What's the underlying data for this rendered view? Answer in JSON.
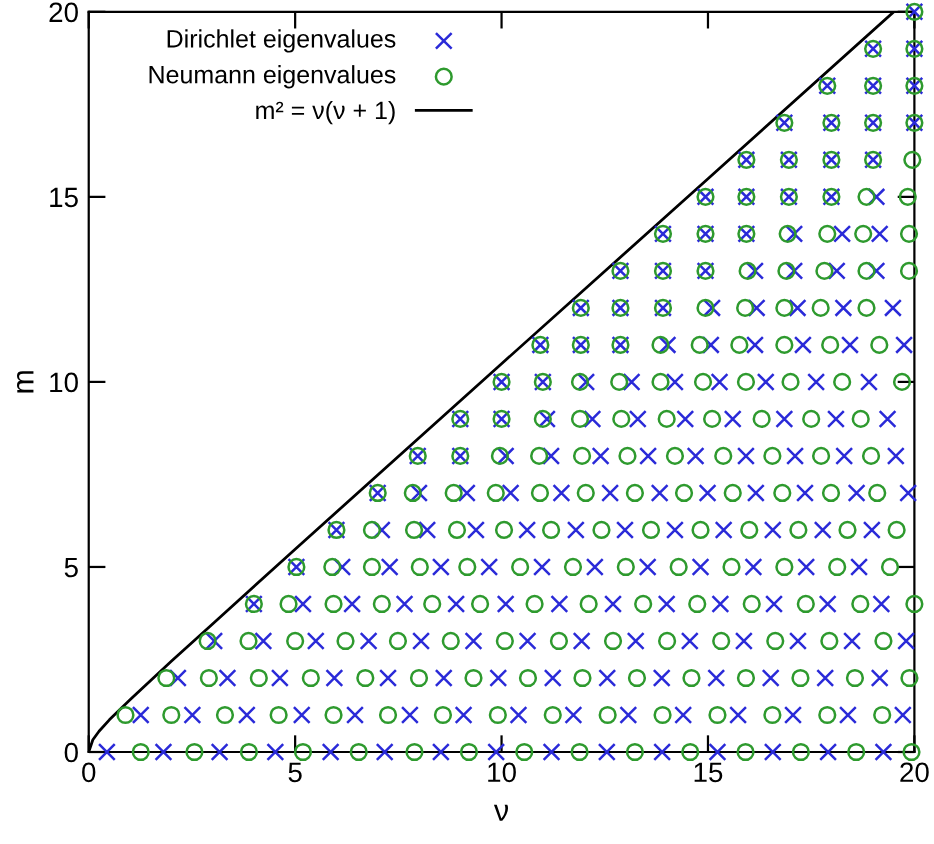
{
  "chart_data": {
    "type": "scatter",
    "xlabel": "ν",
    "ylabel": "m",
    "xlim": [
      0,
      20
    ],
    "ylim": [
      0,
      20
    ],
    "xticks": [
      0,
      5,
      10,
      15,
      20
    ],
    "yticks": [
      0,
      5,
      10,
      15,
      20
    ],
    "legend": "top left",
    "series": [
      {
        "name": "Dirichlet eigenvalues",
        "marker": "cross",
        "color": "#2a2ad8",
        "x": [
          0.44,
          1.81,
          3.17,
          4.52,
          5.86,
          7.17,
          8.53,
          9.87,
          11.21,
          12.55,
          13.89,
          15.23,
          16.57,
          17.91,
          19.25,
          1.26,
          2.51,
          3.83,
          5.16,
          6.45,
          7.78,
          9.08,
          10.41,
          11.74,
          13.07,
          14.4,
          15.73,
          17.06,
          18.39,
          19.72,
          2.16,
          3.36,
          4.63,
          5.95,
          7.25,
          8.6,
          9.92,
          11.24,
          12.56,
          13.88,
          15.2,
          16.52,
          17.84,
          19.16,
          3.04,
          4.23,
          5.5,
          6.78,
          8.05,
          9.32,
          10.63,
          11.94,
          13.25,
          14.56,
          15.87,
          17.18,
          18.49,
          19.8,
          4.0,
          5.19,
          6.38,
          7.65,
          8.9,
          10.1,
          11.4,
          12.7,
          14.0,
          15.3,
          16.6,
          17.9,
          19.2,
          5.03,
          6.14,
          7.29,
          8.53,
          9.7,
          10.98,
          12.26,
          13.54,
          14.82,
          16.1,
          17.38,
          18.66,
          6.0,
          7.1,
          8.2,
          9.38,
          10.62,
          11.8,
          12.99,
          14.2,
          15.38,
          16.57,
          17.78,
          18.97,
          7.0,
          8.0,
          9.16,
          10.22,
          11.45,
          12.63,
          13.83,
          14.99,
          16.16,
          17.35,
          18.6,
          19.85,
          7.97,
          9.0,
          10.1,
          11.2,
          12.4,
          13.55,
          14.7,
          15.92,
          17.11,
          18.3,
          19.55,
          9.0,
          10.0,
          11.1,
          12.2,
          13.3,
          14.45,
          15.6,
          16.85,
          18.1,
          19.35,
          10.0,
          11.0,
          12.05,
          13.15,
          14.2,
          15.28,
          16.4,
          17.62,
          18.9,
          10.94,
          11.92,
          12.88,
          14.02,
          15.07,
          16.14,
          17.3,
          18.44,
          19.75,
          11.92,
          12.88,
          13.91,
          15.1,
          16.18,
          17.17,
          18.28,
          19.48,
          12.88,
          13.91,
          14.94,
          16.14,
          17.09,
          18.12,
          19.08,
          13.91,
          14.94,
          15.93,
          17.09,
          18.25,
          19.16,
          14.94,
          15.93,
          16.96,
          17.99,
          19.08,
          15.93,
          16.96,
          17.99,
          19.0,
          16.85,
          17.99,
          19.0,
          20.0,
          17.89,
          19.0,
          20.0,
          19.0,
          20.0,
          20.0
        ],
        "values": [
          0,
          0,
          0,
          0,
          0,
          0,
          0,
          0,
          0,
          0,
          0,
          0,
          0,
          0,
          0,
          1,
          1,
          1,
          1,
          1,
          1,
          1,
          1,
          1,
          1,
          1,
          1,
          1,
          1,
          1,
          2,
          2,
          2,
          2,
          2,
          2,
          2,
          2,
          2,
          2,
          2,
          2,
          2,
          2,
          3,
          3,
          3,
          3,
          3,
          3,
          3,
          3,
          3,
          3,
          3,
          3,
          3,
          3,
          4,
          4,
          4,
          4,
          4,
          4,
          4,
          4,
          4,
          4,
          4,
          4,
          4,
          5,
          5,
          5,
          5,
          5,
          5,
          5,
          5,
          5,
          5,
          5,
          5,
          6,
          6,
          6,
          6,
          6,
          6,
          6,
          6,
          6,
          6,
          6,
          6,
          7,
          7,
          7,
          7,
          7,
          7,
          7,
          7,
          7,
          7,
          7,
          7,
          8,
          8,
          8,
          8,
          8,
          8,
          8,
          8,
          8,
          8,
          8,
          9,
          9,
          9,
          9,
          9,
          9,
          9,
          9,
          9,
          9,
          10,
          10,
          10,
          10,
          10,
          10,
          10,
          10,
          10,
          11,
          11,
          11,
          11,
          11,
          11,
          11,
          11,
          11,
          12,
          12,
          12,
          12,
          12,
          12,
          12,
          12,
          13,
          13,
          13,
          13,
          13,
          13,
          13,
          14,
          14,
          14,
          14,
          14,
          14,
          15,
          15,
          15,
          15,
          15,
          16,
          16,
          16,
          16,
          17,
          17,
          17,
          17,
          18,
          18,
          18,
          19,
          19,
          20
        ]
      },
      {
        "name": "Neumann eigenvalues",
        "marker": "circle",
        "color": "#2e9a2e",
        "x": [
          1.26,
          2.56,
          3.88,
          5.19,
          6.54,
          7.89,
          9.21,
          10.55,
          11.89,
          13.23,
          14.57,
          15.91,
          17.25,
          18.59,
          19.93,
          0.89,
          2.0,
          3.3,
          4.6,
          5.93,
          7.25,
          8.58,
          9.91,
          11.24,
          12.57,
          13.9,
          15.23,
          16.56,
          17.89,
          19.22,
          1.88,
          2.91,
          4.12,
          5.38,
          6.7,
          8.0,
          9.32,
          10.64,
          11.96,
          13.28,
          14.6,
          15.92,
          17.24,
          18.56,
          19.88,
          2.88,
          3.87,
          5.0,
          6.22,
          7.49,
          8.77,
          10.08,
          11.39,
          12.7,
          14.01,
          15.32,
          16.63,
          17.94,
          19.25,
          4.0,
          4.84,
          5.93,
          7.1,
          8.32,
          9.48,
          10.8,
          12.11,
          13.43,
          14.74,
          16.06,
          17.37,
          18.69,
          20.0,
          5.03,
          5.9,
          6.86,
          8.02,
          9.17,
          10.45,
          11.73,
          13.01,
          14.29,
          15.57,
          16.85,
          18.13,
          19.41,
          6.0,
          6.86,
          7.88,
          8.92,
          10.06,
          11.2,
          12.42,
          13.62,
          14.82,
          16.0,
          17.19,
          18.38,
          19.57,
          7.0,
          7.85,
          8.84,
          9.86,
          10.93,
          12.04,
          13.23,
          14.42,
          15.6,
          16.8,
          17.98,
          19.1,
          7.97,
          9.0,
          9.96,
          10.91,
          11.95,
          13.05,
          14.2,
          15.37,
          16.56,
          17.74,
          18.95,
          9.0,
          10.0,
          11.0,
          11.9,
          12.9,
          14.0,
          15.1,
          16.3,
          17.5,
          18.7,
          10.0,
          11.0,
          11.9,
          12.85,
          13.85,
          14.88,
          15.92,
          17.0,
          18.25,
          19.7,
          10.94,
          11.92,
          12.88,
          13.85,
          14.8,
          15.76,
          16.85,
          17.96,
          19.15,
          11.92,
          12.88,
          13.91,
          14.94,
          15.9,
          16.85,
          17.73,
          18.84,
          12.88,
          13.91,
          14.94,
          15.96,
          16.9,
          17.82,
          18.84,
          19.87,
          13.91,
          14.94,
          15.93,
          16.93,
          17.89,
          18.76,
          19.87,
          14.94,
          15.93,
          16.96,
          17.99,
          18.84,
          19.84,
          15.93,
          16.96,
          17.99,
          19.0,
          19.95,
          16.85,
          17.99,
          19.0,
          20.0,
          17.89,
          19.0,
          20.0,
          19.0,
          20.0,
          20.0
        ],
        "values": [
          0,
          0,
          0,
          0,
          0,
          0,
          0,
          0,
          0,
          0,
          0,
          0,
          0,
          0,
          0,
          1,
          1,
          1,
          1,
          1,
          1,
          1,
          1,
          1,
          1,
          1,
          1,
          1,
          1,
          1,
          2,
          2,
          2,
          2,
          2,
          2,
          2,
          2,
          2,
          2,
          2,
          2,
          2,
          2,
          2,
          3,
          3,
          3,
          3,
          3,
          3,
          3,
          3,
          3,
          3,
          3,
          3,
          3,
          3,
          4,
          4,
          4,
          4,
          4,
          4,
          4,
          4,
          4,
          4,
          4,
          4,
          4,
          4,
          5,
          5,
          5,
          5,
          5,
          5,
          5,
          5,
          5,
          5,
          5,
          5,
          5,
          6,
          6,
          6,
          6,
          6,
          6,
          6,
          6,
          6,
          6,
          6,
          6,
          6,
          7,
          7,
          7,
          7,
          7,
          7,
          7,
          7,
          7,
          7,
          7,
          7,
          8,
          8,
          8,
          8,
          8,
          8,
          8,
          8,
          8,
          8,
          8,
          9,
          9,
          9,
          9,
          9,
          9,
          9,
          9,
          9,
          9,
          10,
          10,
          10,
          10,
          10,
          10,
          10,
          10,
          10,
          10,
          11,
          11,
          11,
          11,
          11,
          11,
          11,
          11,
          11,
          12,
          12,
          12,
          12,
          12,
          12,
          12,
          12,
          13,
          13,
          13,
          13,
          13,
          13,
          13,
          13,
          14,
          14,
          14,
          14,
          14,
          14,
          14,
          15,
          15,
          15,
          15,
          15,
          15,
          16,
          16,
          16,
          16,
          16,
          17,
          17,
          17,
          17,
          18,
          18,
          18,
          19,
          19,
          20
        ]
      },
      {
        "name": "m² = ν(ν + 1)",
        "type": "line",
        "line_style": "solid",
        "color": "#000000",
        "x": [
          0,
          0.1,
          0.25,
          0.5,
          1,
          2,
          3,
          5,
          10,
          15,
          19.5
        ],
        "values": [
          0,
          0.33,
          0.56,
          0.87,
          1.41,
          2.45,
          3.46,
          5.48,
          10.49,
          15.49,
          20
        ]
      }
    ]
  }
}
